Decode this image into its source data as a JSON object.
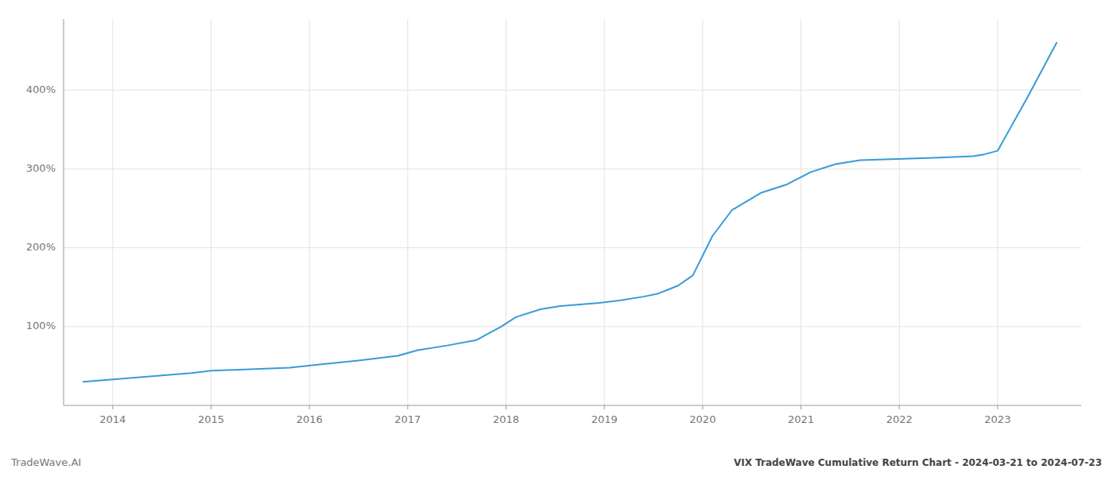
{
  "chart_data": {
    "type": "line",
    "title": "VIX TradeWave Cumulative Return Chart - 2024-03-21 to 2024-07-23",
    "annotations": [
      "TradeWave.AI"
    ],
    "x": [
      2013.7,
      2014.0,
      2014.3,
      2014.8,
      2015.0,
      2015.4,
      2015.8,
      2016.1,
      2016.5,
      2016.9,
      2017.1,
      2017.4,
      2017.7,
      2017.95,
      2018.1,
      2018.35,
      2018.55,
      2018.75,
      2018.95,
      2019.15,
      2019.4,
      2019.55,
      2019.65,
      2019.75,
      2019.9,
      2020.1,
      2020.3,
      2020.6,
      2020.85,
      2021.1,
      2021.35,
      2021.6,
      2021.85,
      2022.1,
      2022.35,
      2022.55,
      2022.75,
      2022.85,
      2023.0,
      2023.3,
      2023.6
    ],
    "values": [
      30,
      33,
      36,
      41,
      44,
      46,
      48,
      52,
      57,
      63,
      70,
      76,
      83,
      100,
      112,
      122,
      126,
      128,
      130,
      133,
      138,
      142,
      147,
      152,
      165,
      215,
      248,
      270,
      280,
      296,
      306,
      311,
      312,
      313,
      314,
      315,
      316,
      318,
      323,
      390,
      460
    ],
    "color": "#3a9ad9",
    "xlim": [
      2013.5,
      2023.85
    ],
    "xticks": [
      2014,
      2015,
      2016,
      2017,
      2018,
      2019,
      2020,
      2021,
      2022,
      2023
    ],
    "ylim": [
      0,
      490
    ],
    "yticks": [
      {
        "value": 100,
        "label": "100%"
      },
      {
        "value": 200,
        "label": "200%"
      },
      {
        "value": 300,
        "label": "300%"
      },
      {
        "value": 400,
        "label": "400%"
      }
    ],
    "grid": true
  }
}
